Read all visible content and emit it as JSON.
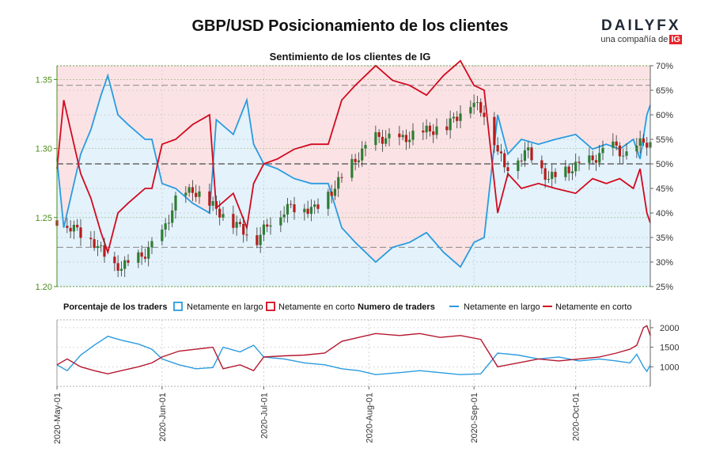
{
  "title": "GBP/USD Posicionamiento de los clientes",
  "subtitle": "Sentimiento de los clientes de IG",
  "logo": {
    "word": "DAILYFX",
    "tagline": "una compañía de",
    "brand": "IG"
  },
  "colors": {
    "long": "#2a9bdf",
    "short": "#d2091f",
    "long_fill": "#e3f2fb",
    "short_fill": "#fbe3e5",
    "candle_up": "#2e7d32",
    "candle_down": "#b71c1c",
    "price_axis": "#4a8d1b"
  },
  "chart_data": [
    {
      "type": "candlestick",
      "name": "price",
      "ylabel": "",
      "ylim": [
        1.2,
        1.36
      ],
      "yticks": [
        1.2,
        1.25,
        1.3,
        1.35
      ],
      "ytick_labels": [
        "1.20",
        "1.25",
        "1.30",
        "1.35"
      ],
      "sentiment_ylim": [
        25,
        70
      ],
      "sentiment_ticks": [
        25,
        30,
        35,
        40,
        45,
        50,
        55,
        60,
        65,
        70
      ],
      "sentiment_tick_labels": [
        "25%",
        "30%",
        "35%",
        "40%",
        "45%",
        "50%",
        "55%",
        "60%",
        "65%",
        "70%"
      ],
      "reference_lines": [
        66,
        50,
        33
      ],
      "close_anchors": [
        [
          "2020-05-01",
          1.248
        ],
        [
          "2020-05-06",
          1.242
        ],
        [
          "2020-05-12",
          1.232
        ],
        [
          "2020-05-18",
          1.214
        ],
        [
          "2020-05-22",
          1.216
        ],
        [
          "2020-05-27",
          1.224
        ],
        [
          "2020-06-01",
          1.238
        ],
        [
          "2020-06-05",
          1.262
        ],
        [
          "2020-06-10",
          1.27
        ],
        [
          "2020-06-16",
          1.258
        ],
        [
          "2020-06-22",
          1.246
        ],
        [
          "2020-06-29",
          1.234
        ],
        [
          "2020-07-03",
          1.248
        ],
        [
          "2020-07-09",
          1.258
        ],
        [
          "2020-07-16",
          1.256
        ],
        [
          "2020-07-22",
          1.272
        ],
        [
          "2020-07-28",
          1.292
        ],
        [
          "2020-08-03",
          1.308
        ],
        [
          "2020-08-10",
          1.306
        ],
        [
          "2020-08-17",
          1.312
        ],
        [
          "2020-08-24",
          1.316
        ],
        [
          "2020-08-31",
          1.334
        ],
        [
          "2020-09-04",
          1.326
        ],
        [
          "2020-09-10",
          1.286
        ],
        [
          "2020-09-17",
          1.298
        ],
        [
          "2020-09-23",
          1.278
        ],
        [
          "2020-09-30",
          1.286
        ],
        [
          "2020-10-06",
          1.292
        ],
        [
          "2020-10-12",
          1.302
        ],
        [
          "2020-10-16",
          1.294
        ],
        [
          "2020-10-21",
          1.306
        ],
        [
          "2020-10-23",
          1.302
        ]
      ]
    },
    {
      "type": "line",
      "name": "Porcentaje de los traders",
      "series": [
        {
          "name": "Netamente en largo",
          "values": [
            [
              "2020-05-01",
              51
            ],
            [
              "2020-05-03",
              37
            ],
            [
              "2020-05-08",
              52
            ],
            [
              "2020-05-11",
              57
            ],
            [
              "2020-05-14",
              64
            ],
            [
              "2020-05-16",
              68
            ],
            [
              "2020-05-19",
              60
            ],
            [
              "2020-05-22",
              58
            ],
            [
              "2020-05-27",
              55
            ],
            [
              "2020-05-29",
              55
            ],
            [
              "2020-06-01",
              46
            ],
            [
              "2020-06-05",
              45
            ],
            [
              "2020-06-10",
              42
            ],
            [
              "2020-06-15",
              40
            ],
            [
              "2020-06-17",
              59
            ],
            [
              "2020-06-22",
              56
            ],
            [
              "2020-06-26",
              63
            ],
            [
              "2020-06-28",
              54
            ],
            [
              "2020-07-01",
              50
            ],
            [
              "2020-07-05",
              49
            ],
            [
              "2020-07-10",
              47
            ],
            [
              "2020-07-15",
              46
            ],
            [
              "2020-07-20",
              46
            ],
            [
              "2020-07-24",
              37
            ],
            [
              "2020-07-28",
              34
            ],
            [
              "2020-08-03",
              30
            ],
            [
              "2020-08-08",
              33
            ],
            [
              "2020-08-13",
              34
            ],
            [
              "2020-08-18",
              36
            ],
            [
              "2020-08-23",
              32
            ],
            [
              "2020-08-28",
              29
            ],
            [
              "2020-09-01",
              34
            ],
            [
              "2020-09-04",
              35
            ],
            [
              "2020-09-08",
              60
            ],
            [
              "2020-09-11",
              52
            ],
            [
              "2020-09-15",
              55
            ],
            [
              "2020-09-20",
              54
            ],
            [
              "2020-09-25",
              55
            ],
            [
              "2020-10-01",
              56
            ],
            [
              "2020-10-06",
              53
            ],
            [
              "2020-10-10",
              54
            ],
            [
              "2020-10-14",
              53
            ],
            [
              "2020-10-18",
              55
            ],
            [
              "2020-10-20",
              51
            ],
            [
              "2020-10-22",
              60
            ],
            [
              "2020-10-23",
              62
            ]
          ]
        },
        {
          "name": "Netamente en corto",
          "values": [
            [
              "2020-05-01",
              49
            ],
            [
              "2020-05-03",
              63
            ],
            [
              "2020-05-08",
              48
            ],
            [
              "2020-05-11",
              43
            ],
            [
              "2020-05-14",
              36
            ],
            [
              "2020-05-16",
              32
            ],
            [
              "2020-05-19",
              40
            ],
            [
              "2020-05-22",
              42
            ],
            [
              "2020-05-27",
              45
            ],
            [
              "2020-05-29",
              45
            ],
            [
              "2020-06-01",
              54
            ],
            [
              "2020-06-05",
              55
            ],
            [
              "2020-06-10",
              58
            ],
            [
              "2020-06-15",
              60
            ],
            [
              "2020-06-17",
              41
            ],
            [
              "2020-06-22",
              44
            ],
            [
              "2020-06-26",
              37
            ],
            [
              "2020-06-28",
              46
            ],
            [
              "2020-07-01",
              50
            ],
            [
              "2020-07-05",
              51
            ],
            [
              "2020-07-10",
              53
            ],
            [
              "2020-07-15",
              54
            ],
            [
              "2020-07-20",
              54
            ],
            [
              "2020-07-24",
              63
            ],
            [
              "2020-07-28",
              66
            ],
            [
              "2020-08-03",
              70
            ],
            [
              "2020-08-08",
              67
            ],
            [
              "2020-08-13",
              66
            ],
            [
              "2020-08-18",
              64
            ],
            [
              "2020-08-23",
              68
            ],
            [
              "2020-08-28",
              71
            ],
            [
              "2020-09-01",
              66
            ],
            [
              "2020-09-04",
              65
            ],
            [
              "2020-09-08",
              40
            ],
            [
              "2020-09-11",
              48
            ],
            [
              "2020-09-15",
              45
            ],
            [
              "2020-09-20",
              46
            ],
            [
              "2020-09-25",
              45
            ],
            [
              "2020-10-01",
              44
            ],
            [
              "2020-10-06",
              47
            ],
            [
              "2020-10-10",
              46
            ],
            [
              "2020-10-14",
              47
            ],
            [
              "2020-10-18",
              45
            ],
            [
              "2020-10-20",
              49
            ],
            [
              "2020-10-22",
              40
            ],
            [
              "2020-10-23",
              38
            ]
          ]
        }
      ]
    },
    {
      "type": "line",
      "name": "Numero de traders",
      "ylim": [
        500,
        2200
      ],
      "yticks": [
        1000,
        1500,
        2000
      ],
      "ytick_labels": [
        "1000",
        "1500",
        "2000"
      ],
      "series": [
        {
          "name": "Netamente en largo",
          "values": [
            [
              "2020-05-01",
              1050
            ],
            [
              "2020-05-04",
              900
            ],
            [
              "2020-05-08",
              1300
            ],
            [
              "2020-05-12",
              1550
            ],
            [
              "2020-05-16",
              1780
            ],
            [
              "2020-05-20",
              1680
            ],
            [
              "2020-05-25",
              1580
            ],
            [
              "2020-05-29",
              1450
            ],
            [
              "2020-06-01",
              1200
            ],
            [
              "2020-06-06",
              1050
            ],
            [
              "2020-06-11",
              950
            ],
            [
              "2020-06-16",
              980
            ],
            [
              "2020-06-19",
              1500
            ],
            [
              "2020-06-24",
              1380
            ],
            [
              "2020-06-28",
              1550
            ],
            [
              "2020-07-01",
              1250
            ],
            [
              "2020-07-07",
              1200
            ],
            [
              "2020-07-13",
              1100
            ],
            [
              "2020-07-19",
              1050
            ],
            [
              "2020-07-24",
              950
            ],
            [
              "2020-07-29",
              900
            ],
            [
              "2020-08-03",
              800
            ],
            [
              "2020-08-10",
              850
            ],
            [
              "2020-08-16",
              900
            ],
            [
              "2020-08-22",
              850
            ],
            [
              "2020-08-28",
              800
            ],
            [
              "2020-09-03",
              820
            ],
            [
              "2020-09-08",
              1350
            ],
            [
              "2020-09-14",
              1300
            ],
            [
              "2020-09-20",
              1200
            ],
            [
              "2020-09-26",
              1250
            ],
            [
              "2020-10-02",
              1150
            ],
            [
              "2020-10-08",
              1200
            ],
            [
              "2020-10-13",
              1150
            ],
            [
              "2020-10-17",
              1100
            ],
            [
              "2020-10-19",
              1320
            ],
            [
              "2020-10-21",
              1000
            ],
            [
              "2020-10-22",
              880
            ],
            [
              "2020-10-23",
              1050
            ]
          ]
        },
        {
          "name": "Netamente en corto",
          "values": [
            [
              "2020-05-01",
              1050
            ],
            [
              "2020-05-04",
              1200
            ],
            [
              "2020-05-08",
              1000
            ],
            [
              "2020-05-12",
              900
            ],
            [
              "2020-05-16",
              820
            ],
            [
              "2020-05-20",
              900
            ],
            [
              "2020-05-25",
              1000
            ],
            [
              "2020-05-29",
              1100
            ],
            [
              "2020-06-01",
              1250
            ],
            [
              "2020-06-06",
              1400
            ],
            [
              "2020-06-11",
              1450
            ],
            [
              "2020-06-16",
              1500
            ],
            [
              "2020-06-19",
              950
            ],
            [
              "2020-06-24",
              1050
            ],
            [
              "2020-06-28",
              900
            ],
            [
              "2020-07-01",
              1250
            ],
            [
              "2020-07-07",
              1280
            ],
            [
              "2020-07-13",
              1300
            ],
            [
              "2020-07-19",
              1350
            ],
            [
              "2020-07-24",
              1650
            ],
            [
              "2020-07-29",
              1750
            ],
            [
              "2020-08-03",
              1850
            ],
            [
              "2020-08-10",
              1800
            ],
            [
              "2020-08-16",
              1850
            ],
            [
              "2020-08-22",
              1750
            ],
            [
              "2020-08-28",
              1800
            ],
            [
              "2020-09-03",
              1700
            ],
            [
              "2020-09-08",
              1000
            ],
            [
              "2020-09-14",
              1100
            ],
            [
              "2020-09-20",
              1200
            ],
            [
              "2020-09-26",
              1150
            ],
            [
              "2020-10-02",
              1200
            ],
            [
              "2020-10-08",
              1250
            ],
            [
              "2020-10-13",
              1350
            ],
            [
              "2020-10-17",
              1450
            ],
            [
              "2020-10-19",
              1550
            ],
            [
              "2020-10-21",
              2000
            ],
            [
              "2020-10-22",
              2050
            ],
            [
              "2020-10-23",
              1800
            ]
          ]
        }
      ]
    }
  ],
  "x_axis": {
    "range": [
      "2020-05-01",
      "2020-10-23"
    ],
    "ticks": [
      "2020-05-01",
      "2020-06-01",
      "2020-07-01",
      "2020-08-01",
      "2020-09-01",
      "2020-10-01"
    ],
    "tick_labels": [
      "2020-May-01",
      "2020-Jun-01",
      "2020-Jul-01",
      "2020-Aug-01",
      "2020-Sep-01",
      "2020-Oct-01"
    ]
  },
  "legend": {
    "percent_title": "Porcentaje de los traders",
    "count_title": "Numero de traders",
    "long": "Netamente en largo",
    "short": "Netamente en corto"
  }
}
